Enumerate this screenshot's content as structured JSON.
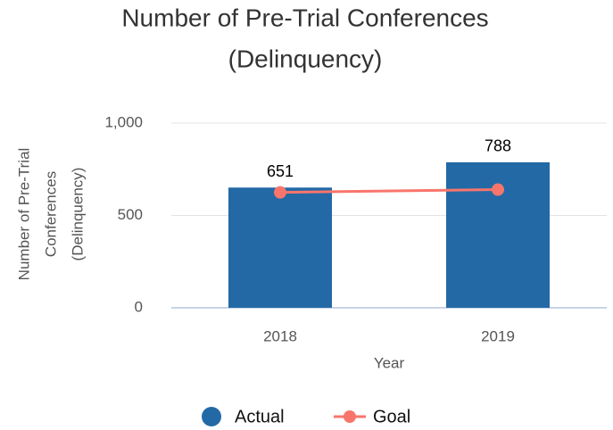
{
  "chart_data": {
    "type": "bar",
    "title": [
      "Number of Pre-Trial Conferences",
      "(Delinquency)"
    ],
    "x_label": "Year",
    "y_label": [
      "Number of Pre-Trial",
      "Conferences",
      "(Delinquency)"
    ],
    "categories": [
      "2018",
      "2019"
    ],
    "series": [
      {
        "name": "Actual",
        "type": "bar",
        "color": "#2369a6",
        "values": [
          651,
          788
        ]
      },
      {
        "name": "Goal",
        "type": "line",
        "color": "#f8756c",
        "values": [
          625,
          640
        ]
      }
    ],
    "ylim": [
      0,
      1000
    ],
    "yticks": [
      0,
      500,
      {
        "value": 1000,
        "label": "1,000"
      }
    ],
    "grid": true,
    "legend": "bottom"
  }
}
